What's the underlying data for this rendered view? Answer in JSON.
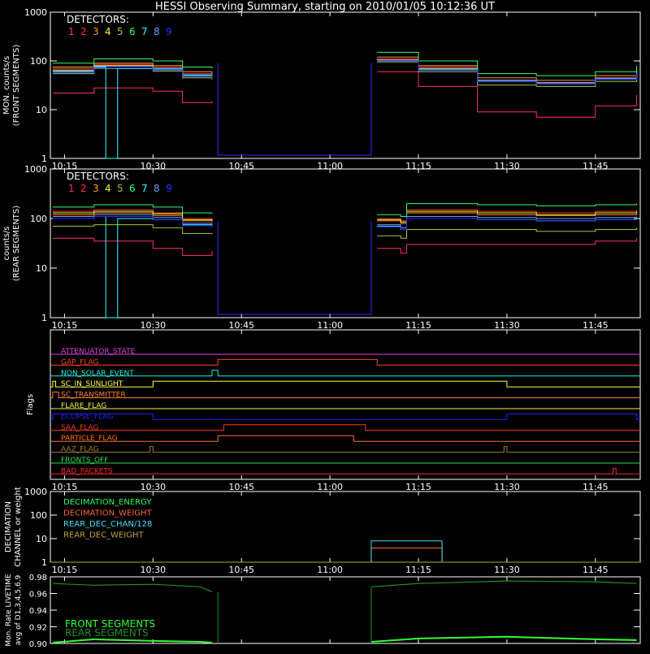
{
  "title": "HESSI Observing Summary, starting on 2010/01/05 10:12:36 UT",
  "colors": {
    "background": "#000000",
    "frame": "#ffffff",
    "detectors": [
      "#ff2d6f",
      "#ff2d2d",
      "#ff9a2d",
      "#f5f52d",
      "#9dc83a",
      "#2dff6f",
      "#2dffff",
      "#6e9cff",
      "#2d2dff"
    ],
    "flags": {
      "attenuator_state": "#e040e0",
      "gap_flag": "#ff4020",
      "non_solar_event": "#20f0e0",
      "sc_in_sunlight": "#ffff40",
      "sc_transmitter": "#ff8030",
      "flare_flag": "#f0f040",
      "eclipse_flag": "#2020ff",
      "saa_flag": "#ff3a20",
      "particle_flag": "#ff7020",
      "aaz_flag": "#a08020",
      "fronts_off": "#20e050",
      "bad_packets": "#ff2020"
    },
    "decimation": {
      "energy": "#20ff60",
      "weight": "#ff6030",
      "rear_chan": "#40e0ff",
      "rear_weight": "#c0a040"
    },
    "livetime": {
      "front": "#30ff30",
      "rear": "#209020"
    }
  },
  "x_ticks": [
    "10:15",
    "10:30",
    "10:45",
    "11:00",
    "11:15",
    "11:30",
    "11:45"
  ],
  "panels": {
    "front": {
      "ylabel": "MON. counts/s",
      "ylabel2": "(FRONT SEGMENTS)",
      "yticks": [
        "1000",
        "100",
        "10",
        "1"
      ],
      "legend_title": "DETECTORS:",
      "legend_numbers": [
        "1",
        "2",
        "3",
        "4",
        "5",
        "6",
        "7",
        "8",
        "9"
      ]
    },
    "rear": {
      "ylabel": "counts/s",
      "ylabel2": "(REAR SEGMENTS)",
      "yticks": [
        "1000",
        "100",
        "10",
        "1"
      ],
      "legend_title": "DETECTORS:",
      "legend_numbers": [
        "1",
        "2",
        "3",
        "4",
        "5",
        "6",
        "7",
        "8",
        "9"
      ]
    },
    "flags": {
      "ylabel": "Flags",
      "labels": [
        "ATTENUATOR_STATE",
        "GAP_FLAG",
        "NON_SOLAR_EVENT",
        "SC_IN_SUNLIGHT",
        "SC_TRANSMITTER",
        "FLARE_FLAG",
        "ECLIPSE_FLAG",
        "SAA_FLAG",
        "PARTICLE_FLAG",
        "AAZ_FLAG",
        "FRONTS_OFF",
        "BAD_PACKETS"
      ]
    },
    "decimation": {
      "ylabel": "DECIMATION",
      "ylabel2": "CHANNEL or weight",
      "yticks": [
        "1000",
        "100",
        "10",
        "1"
      ],
      "legend": [
        "DECIMATION_ENERGY",
        "DECIMATION_WEIGHT",
        "REAR_DEC_CHAN/128",
        "REAR_DEC_WEIGHT"
      ]
    },
    "livetime": {
      "ylabel": "Mon. Rate LIVETIME",
      "ylabel2": "avg of D1,3,4,5,6,9",
      "yticks": [
        "0.98",
        "0.96",
        "0.94",
        "0.92",
        "0.90"
      ],
      "legend": [
        "FRONT SEGMENTS",
        "REAR SEGMENTS"
      ]
    }
  },
  "chart_data": [
    {
      "type": "line",
      "title": "HESSI Observing Summary, starting on 2010/01/05 10:12:36 UT",
      "ylabel": "MON. counts/s (FRONT SEGMENTS)",
      "yscale": "log",
      "ylim": [
        1,
        1000
      ],
      "xlim": [
        "10:12:36",
        "11:52:36"
      ],
      "gaps": [
        [
          "10:41",
          "11:07"
        ]
      ],
      "series": [
        {
          "name": "1",
          "x": [
            "10:13",
            "10:20",
            "10:30",
            "10:35",
            "10:40",
            "11:08",
            "11:15",
            "11:25",
            "11:35",
            "11:45",
            "11:52"
          ],
          "values": [
            22,
            28,
            24,
            14,
            15,
            60,
            30,
            9,
            7,
            12,
            20
          ]
        },
        {
          "name": "2",
          "x": [
            "10:13",
            "10:20",
            "10:30",
            "10:35",
            "10:40",
            "11:08",
            "11:15",
            "11:25",
            "11:35",
            "11:45",
            "11:52"
          ],
          "values": [
            70,
            85,
            75,
            55,
            50,
            110,
            75,
            40,
            35,
            45,
            60
          ]
        },
        {
          "name": "3",
          "x": [
            "10:13",
            "10:20",
            "10:30",
            "10:35",
            "10:40",
            "11:08",
            "11:15",
            "11:25",
            "11:35",
            "11:45",
            "11:52"
          ],
          "values": [
            75,
            90,
            80,
            60,
            55,
            120,
            80,
            45,
            40,
            50,
            65
          ]
        },
        {
          "name": "4",
          "x": [
            "10:13",
            "10:20",
            "10:30",
            "10:35",
            "10:40",
            "11:08",
            "11:15",
            "11:25",
            "11:35",
            "11:45",
            "11:52"
          ],
          "values": [
            65,
            80,
            70,
            52,
            48,
            105,
            70,
            40,
            36,
            44,
            58
          ]
        },
        {
          "name": "5",
          "x": [
            "10:13",
            "10:20",
            "10:30",
            "10:35",
            "10:40",
            "11:08",
            "11:15",
            "11:25",
            "11:35",
            "11:45",
            "11:52"
          ],
          "values": [
            55,
            70,
            62,
            45,
            42,
            95,
            60,
            32,
            30,
            38,
            52
          ]
        },
        {
          "name": "6",
          "x": [
            "10:13",
            "10:20",
            "10:30",
            "10:35",
            "10:40",
            "11:08",
            "11:15",
            "11:25",
            "11:35",
            "11:45",
            "11:52"
          ],
          "values": [
            90,
            110,
            100,
            75,
            70,
            150,
            100,
            55,
            50,
            60,
            80
          ]
        },
        {
          "name": "7",
          "x": [
            "10:13",
            "10:20",
            "10:22",
            "10:24",
            "10:30",
            "10:35",
            "10:40",
            "11:08",
            "11:15",
            "11:25",
            "11:35",
            "11:45",
            "11:52"
          ],
          "values": [
            60,
            75,
            1,
            70,
            68,
            50,
            46,
            100,
            65,
            38,
            34,
            42,
            56
          ]
        },
        {
          "name": "8",
          "x": [
            "10:13",
            "10:20",
            "10:30",
            "10:35",
            "10:40",
            "11:08",
            "11:15",
            "11:25",
            "11:35",
            "11:45",
            "11:52"
          ],
          "values": [
            62,
            78,
            70,
            52,
            48,
            105,
            68,
            40,
            36,
            44,
            58
          ]
        },
        {
          "name": "9",
          "x": [
            "10:13",
            "10:20",
            "10:30",
            "10:35",
            "10:40",
            "11:08",
            "11:15",
            "11:25",
            "11:35",
            "11:45",
            "11:52"
          ],
          "values": [
            58,
            72,
            65,
            48,
            45,
            100,
            64,
            38,
            34,
            42,
            55
          ]
        }
      ]
    },
    {
      "type": "line",
      "ylabel": "counts/s (REAR SEGMENTS)",
      "yscale": "log",
      "ylim": [
        1,
        1000
      ],
      "xlim": [
        "10:12:36",
        "11:52:36"
      ],
      "gaps": [
        [
          "10:41",
          "11:07"
        ]
      ],
      "series": [
        {
          "name": "1",
          "x": [
            "10:13",
            "10:20",
            "10:30",
            "10:35",
            "10:40",
            "11:08",
            "11:12",
            "11:13",
            "11:25",
            "11:35",
            "11:45",
            "11:52"
          ],
          "values": [
            40,
            35,
            25,
            18,
            22,
            25,
            20,
            30,
            30,
            30,
            35,
            40
          ]
        },
        {
          "name": "2",
          "x": [
            "10:13",
            "10:20",
            "10:30",
            "10:35",
            "10:40",
            "11:08",
            "11:12",
            "11:13",
            "11:25",
            "11:35",
            "11:45",
            "11:52"
          ],
          "values": [
            140,
            150,
            130,
            100,
            95,
            100,
            90,
            150,
            140,
            130,
            140,
            150
          ]
        },
        {
          "name": "3",
          "x": [
            "10:13",
            "10:20",
            "10:30",
            "10:35",
            "10:40",
            "11:08",
            "11:12",
            "11:13",
            "11:25",
            "11:35",
            "11:45",
            "11:52"
          ],
          "values": [
            120,
            130,
            115,
            90,
            85,
            90,
            80,
            130,
            120,
            115,
            120,
            130
          ]
        },
        {
          "name": "4",
          "x": [
            "10:13",
            "10:20",
            "10:30",
            "10:35",
            "10:40",
            "11:08",
            "11:12",
            "11:13",
            "11:25",
            "11:35",
            "11:45",
            "11:52"
          ],
          "values": [
            130,
            140,
            125,
            95,
            90,
            95,
            85,
            140,
            130,
            120,
            130,
            140
          ]
        },
        {
          "name": "5",
          "x": [
            "10:13",
            "10:20",
            "10:30",
            "10:35",
            "10:40",
            "11:08",
            "11:12",
            "11:13",
            "11:25",
            "11:35",
            "11:45",
            "11:52"
          ],
          "values": [
            70,
            75,
            65,
            50,
            48,
            45,
            40,
            60,
            60,
            55,
            60,
            65
          ]
        },
        {
          "name": "6",
          "x": [
            "10:13",
            "10:20",
            "10:30",
            "10:35",
            "10:40",
            "11:08",
            "11:12",
            "11:13",
            "11:25",
            "11:35",
            "11:45",
            "11:52"
          ],
          "values": [
            170,
            190,
            170,
            130,
            125,
            120,
            110,
            200,
            190,
            180,
            190,
            200
          ]
        },
        {
          "name": "7",
          "x": [
            "10:13",
            "10:20",
            "10:22",
            "10:24",
            "10:30",
            "10:35",
            "10:40",
            "11:08",
            "11:12",
            "11:13",
            "11:25",
            "11:35",
            "11:45",
            "11:52"
          ],
          "values": [
            100,
            110,
            1,
            100,
            95,
            75,
            70,
            70,
            60,
            100,
            95,
            90,
            95,
            100
          ]
        },
        {
          "name": "8",
          "x": [
            "10:13",
            "10:20",
            "10:30",
            "10:35",
            "10:40",
            "11:08",
            "11:12",
            "11:13",
            "11:25",
            "11:35",
            "11:45",
            "11:52"
          ],
          "values": [
            110,
            120,
            105,
            80,
            75,
            75,
            65,
            110,
            105,
            100,
            105,
            110
          ]
        },
        {
          "name": "9",
          "x": [
            "10:13",
            "10:20",
            "10:30",
            "10:35",
            "10:40",
            "11:08",
            "11:12",
            "11:13",
            "11:25",
            "11:35",
            "11:45",
            "11:52"
          ],
          "values": [
            100,
            110,
            95,
            72,
            68,
            68,
            60,
            100,
            95,
            90,
            95,
            100
          ]
        }
      ]
    },
    {
      "type": "line",
      "ylabel": "Flags",
      "xlim": [
        "10:12:36",
        "11:52:36"
      ],
      "series": [
        {
          "name": "ATTENUATOR_STATE",
          "on_intervals": []
        },
        {
          "name": "GAP_FLAG",
          "on_intervals": [
            [
              "10:41",
              "11:08"
            ]
          ]
        },
        {
          "name": "NON_SOLAR_EVENT",
          "on_intervals": [
            [
              "10:40",
              "10:41"
            ]
          ]
        },
        {
          "name": "SC_IN_SUNLIGHT",
          "on_intervals": [
            [
              "10:13",
              "10:13:30"
            ],
            [
              "10:30",
              "11:30"
            ]
          ]
        },
        {
          "name": "SC_TRANSMITTER",
          "on_intervals": [
            [
              "10:13",
              "10:14"
            ]
          ]
        },
        {
          "name": "FLARE_FLAG",
          "on_intervals": []
        },
        {
          "name": "ECLIPSE_FLAG",
          "on_intervals": [
            [
              "10:13",
              "10:30"
            ],
            [
              "11:30",
              "11:52"
            ]
          ]
        },
        {
          "name": "SAA_FLAG",
          "on_intervals": [
            [
              "10:42",
              "11:06"
            ]
          ]
        },
        {
          "name": "PARTICLE_FLAG",
          "on_intervals": [
            [
              "10:41",
              "11:04"
            ]
          ]
        },
        {
          "name": "AAZ_FLAG",
          "on_intervals": [
            [
              "10:29:30",
              "10:30"
            ],
            [
              "11:29:30",
              "11:30"
            ]
          ]
        },
        {
          "name": "FRONTS_OFF",
          "on_intervals": []
        },
        {
          "name": "BAD_PACKETS",
          "on_intervals": [
            [
              "11:48",
              "11:48:30"
            ]
          ]
        }
      ]
    },
    {
      "type": "line",
      "ylabel": "DECIMATION CHANNEL or weight",
      "yscale": "log",
      "ylim": [
        1,
        1000
      ],
      "xlim": [
        "10:12:36",
        "11:52:36"
      ],
      "series": [
        {
          "name": "DECIMATION_ENERGY",
          "x": [
            "10:12:36",
            "11:52:36"
          ],
          "values": [
            0,
            0
          ]
        },
        {
          "name": "DECIMATION_WEIGHT",
          "x": [
            "10:12:36",
            "11:07",
            "11:07",
            "11:19",
            "11:19",
            "11:52:36"
          ],
          "values": [
            1,
            1,
            4,
            4,
            1,
            1
          ]
        },
        {
          "name": "REAR_DEC_CHAN/128",
          "x": [
            "10:12:36",
            "11:07",
            "11:07",
            "11:19",
            "11:19",
            "11:52:36"
          ],
          "values": [
            1,
            1,
            8,
            8,
            1,
            1
          ]
        },
        {
          "name": "REAR_DEC_WEIGHT",
          "x": [
            "10:12:36",
            "11:52:36"
          ],
          "values": [
            1,
            1
          ]
        }
      ]
    },
    {
      "type": "line",
      "ylabel": "Mon. Rate LIVETIME avg of D1,3,4,5,6,9",
      "ylim": [
        0.9,
        0.98
      ],
      "xlim": [
        "10:12:36",
        "11:52:36"
      ],
      "gaps": [
        [
          "10:41",
          "11:07"
        ]
      ],
      "series": [
        {
          "name": "FRONT SEGMENTS",
          "x": [
            "10:13",
            "10:20",
            "10:30",
            "10:38",
            "10:40",
            "11:07",
            "11:15",
            "11:30",
            "11:45",
            "11:52"
          ],
          "values": [
            0.901,
            0.905,
            0.903,
            0.902,
            0.901,
            0.902,
            0.906,
            0.908,
            0.905,
            0.904
          ]
        },
        {
          "name": "REAR SEGMENTS",
          "x": [
            "10:13",
            "10:20",
            "10:30",
            "10:38",
            "10:40",
            "11:07",
            "11:15",
            "11:30",
            "11:45",
            "11:52"
          ],
          "values": [
            0.972,
            0.97,
            0.971,
            0.968,
            0.962,
            0.968,
            0.972,
            0.975,
            0.974,
            0.972
          ]
        }
      ]
    }
  ]
}
